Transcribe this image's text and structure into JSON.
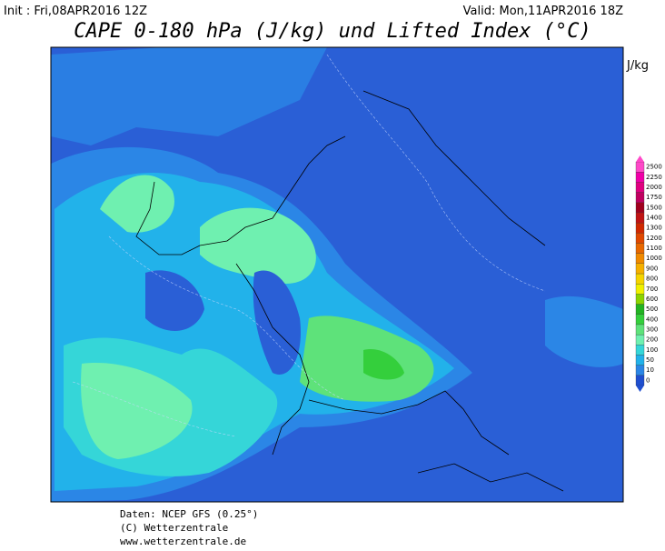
{
  "header": {
    "init": "Init : Fri,08APR2016 12Z",
    "valid": "Valid: Mon,11APR2016 18Z",
    "title": "CAPE 0-180 hPa (J/kg) und Lifted Index (°C)"
  },
  "colorbar": {
    "unit": "J/kg",
    "levels": [
      "0",
      "10",
      "50",
      "100",
      "200",
      "300",
      "400",
      "500",
      "600",
      "700",
      "800",
      "900",
      "1000",
      "1100",
      "1200",
      "1300",
      "1400",
      "1500",
      "1750",
      "2000",
      "2250",
      "2500"
    ],
    "colors": [
      "#1f4fd0",
      "#2b86e6",
      "#22b2ea",
      "#35d6d8",
      "#6ff0b0",
      "#5ee27a",
      "#34cf3c",
      "#22b422",
      "#8cd400",
      "#f0f000",
      "#f5d400",
      "#f5b000",
      "#f08a00",
      "#e86800",
      "#e04800",
      "#d02800",
      "#c01414",
      "#a0001e",
      "#c00060",
      "#e00080",
      "#f000a8",
      "#ff48c8"
    ]
  },
  "footer": {
    "source": "Daten: NCEP GFS (0.25°)",
    "copyright": "(C) Wetterzentrale",
    "url": "www.wetterzentrale.de"
  }
}
